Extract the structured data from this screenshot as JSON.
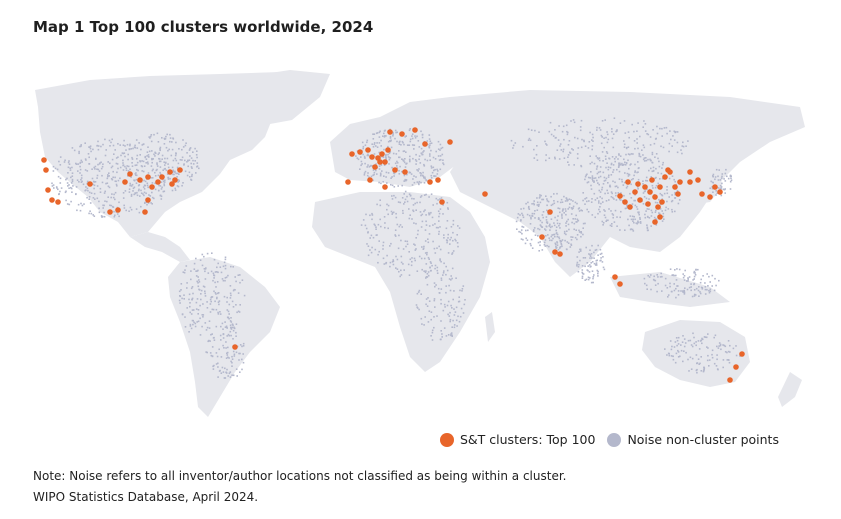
{
  "title": "Map 1 Top 100 clusters worldwide, 2024",
  "legend": {
    "clusters_label": "S&T clusters: Top 100",
    "noise_label": "Noise non-cluster points"
  },
  "note": "Note: Noise refers to all inventor/author locations not classified as being within a cluster.",
  "source": "WIPO Statistics Database, April 2024.",
  "colors": {
    "cluster": "#e8652a",
    "noise": "#b4b8cc",
    "land": "#e6e7ec"
  }
}
